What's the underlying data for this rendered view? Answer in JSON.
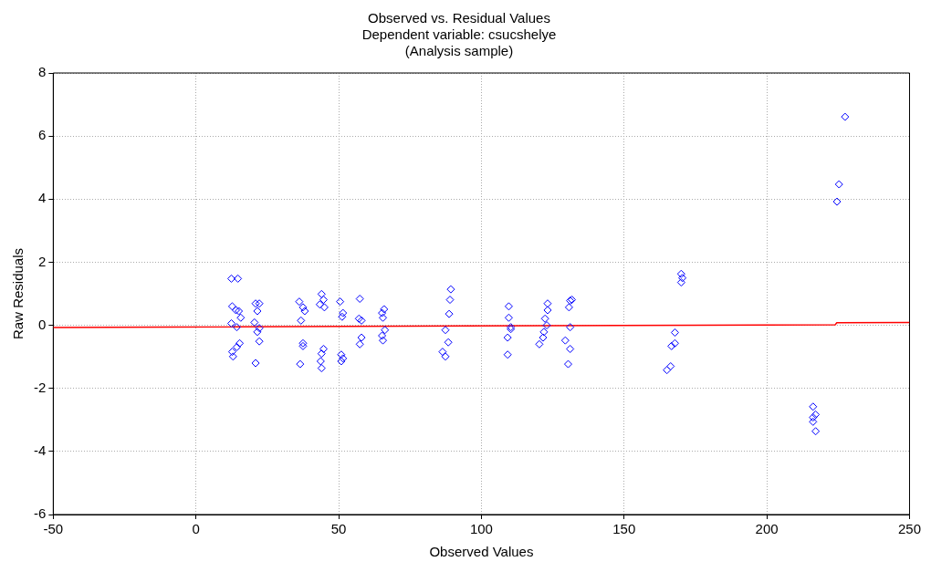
{
  "chart_data": {
    "type": "scatter",
    "title": "Observed vs. Residual Values",
    "subtitle": "Dependent variable: csucshelye",
    "annotations": [
      "(Analysis sample)"
    ],
    "xlabel": "Observed Values",
    "ylabel": "Raw Residuals",
    "xlim": [
      -50,
      250
    ],
    "xticks": [
      -50,
      0,
      50,
      100,
      150,
      200,
      250
    ],
    "ylim": [
      -6,
      8
    ],
    "yticks": [
      -6,
      -4,
      -2,
      0,
      2,
      4,
      6,
      8
    ],
    "grid": true,
    "legend": false,
    "marker": "diamond",
    "series": [
      {
        "color": "#0000ff",
        "x": [
          12.4,
          14.7,
          12.7,
          14.0,
          15.0,
          12.4,
          14.3,
          15.7,
          12.7,
          14.3,
          13.0,
          15.3,
          20.9,
          22.2,
          21.5,
          20.5,
          22.2,
          22.2,
          20.9,
          21.5,
          36.2,
          37.5,
          38.1,
          36.8,
          37.5,
          37.5,
          36.5,
          44.0,
          43.4,
          45.0,
          44.7,
          44.0,
          43.7,
          44.0,
          44.7,
          50.5,
          51.5,
          51.2,
          50.9,
          51.5,
          50.9,
          57.4,
          57.1,
          58.0,
          58.0,
          57.4,
          65.2,
          65.9,
          65.5,
          66.2,
          65.2,
          65.5,
          86.4,
          87.4,
          87.4,
          88.4,
          89.0,
          89.3,
          88.7,
          109.2,
          109.6,
          109.6,
          110.3,
          110.3,
          109.2,
          120.3,
          121.6,
          121.9,
          122.3,
          123.2,
          123.2,
          122.9,
          129.4,
          130.4,
          131.1,
          130.7,
          131.1,
          131.1,
          131.7,
          165.0,
          166.3,
          166.6,
          167.8,
          167.8,
          170.0,
          170.4,
          170.0,
          216.2,
          217.1,
          216.2,
          216.2,
          217.1,
          224.6,
          225.3,
          227.4
        ],
        "values": [
          1.48,
          1.48,
          0.6,
          0.48,
          0.45,
          0.06,
          -0.06,
          0.24,
          -0.84,
          -0.69,
          -0.99,
          -0.57,
          0.69,
          0.69,
          0.45,
          0.09,
          -0.09,
          -0.51,
          -1.2,
          -0.21,
          0.75,
          0.57,
          0.45,
          0.15,
          -0.57,
          -0.66,
          -1.23,
          0.99,
          0.66,
          0.57,
          0.81,
          -0.9,
          -1.14,
          -1.36,
          -0.75,
          0.75,
          0.39,
          0.27,
          -0.93,
          -1.05,
          -1.14,
          0.84,
          0.21,
          0.15,
          -0.39,
          -0.6,
          0.39,
          0.51,
          0.24,
          -0.15,
          -0.33,
          -0.48,
          -0.84,
          -0.99,
          -0.15,
          -0.54,
          0.81,
          1.14,
          0.36,
          -0.39,
          0.6,
          0.24,
          -0.06,
          -0.12,
          -0.93,
          -0.6,
          -0.39,
          -0.21,
          0.21,
          0.69,
          0.48,
          0.0,
          -0.48,
          -1.23,
          -0.75,
          0.57,
          0.78,
          -0.06,
          0.81,
          -1.42,
          -1.3,
          -0.66,
          -0.57,
          -0.23,
          1.63,
          1.5,
          1.36,
          -2.58,
          -2.83,
          -3.06,
          -2.92,
          -3.36,
          3.92,
          4.47,
          6.61
        ]
      },
      {
        "type": "line",
        "color": "#ff0000",
        "marker": "none",
        "x": [
          -50,
          224,
          224.5,
          250
        ],
        "values": [
          -0.07,
          0.02,
          0.08,
          0.09
        ]
      }
    ]
  }
}
